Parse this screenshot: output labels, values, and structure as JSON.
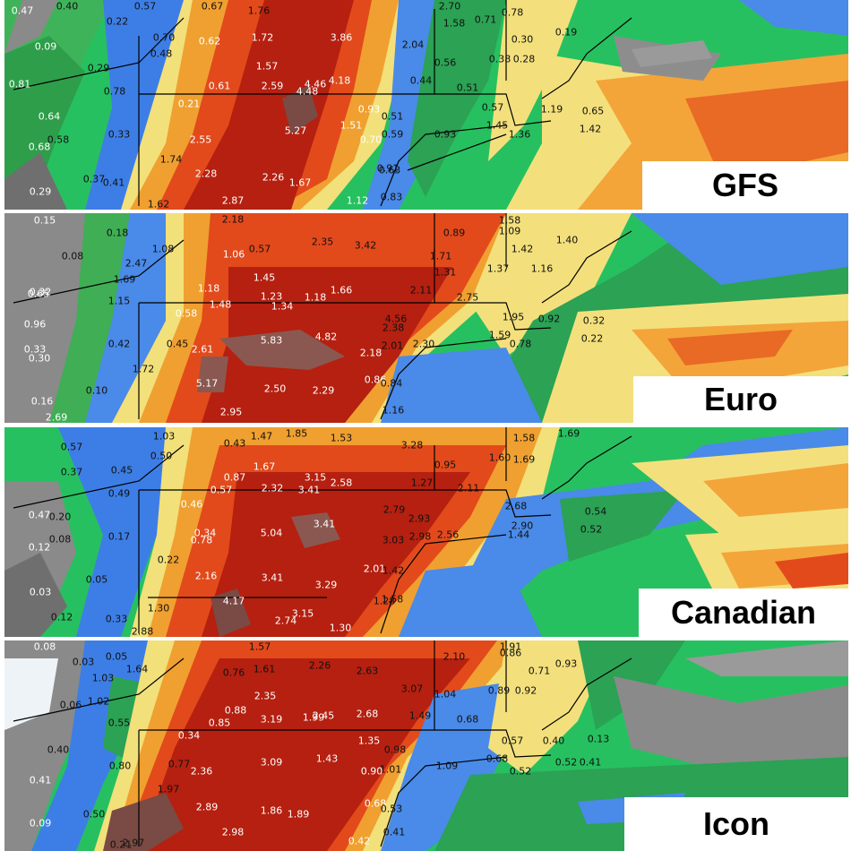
{
  "panels": [
    {
      "model": "GFS",
      "colors": {
        "base": "#22c35a"
      },
      "values": [
        "0.40",
        "0.57",
        "0.67",
        "1.76",
        "2.70",
        "0.71",
        "0.78",
        "0.47",
        "0.22",
        "0.70",
        "0.62",
        "1.72",
        "3.86",
        "2.04",
        "1.58",
        "0.30",
        "0.19",
        "0.09",
        "0.48",
        "0.38",
        "0.28",
        "0.29",
        "1.57",
        "4.46",
        "0.56",
        "0.81",
        "0.78",
        "0.61",
        "2.59",
        "4.18",
        "0.44",
        "0.51",
        "0.21",
        "4.48",
        "0.57",
        "1.19",
        "0.65",
        "0.64",
        "0.93",
        "0.51",
        "0.33",
        "5.27",
        "1.51",
        "1.36",
        "1.42",
        "0.68",
        "0.58",
        "2.55",
        "0.70",
        "0.59",
        "0.93",
        "1.45",
        "1.74",
        "0.91",
        "2.28",
        "2.26",
        "1.67",
        "0.63",
        "0.37",
        "0.41",
        "0.29",
        "2.87",
        "1.12",
        "0.83",
        "1.62"
      ]
    },
    {
      "model": "Euro",
      "values": [
        "0.15",
        "2.18",
        "1.58",
        "0.18",
        "0.89",
        "1.09",
        "1.42",
        "1.40",
        "1.08",
        "2.35",
        "3.42",
        "1.71",
        "0.08",
        "2.47",
        "1.06",
        "0.57",
        "1.69",
        "1.37",
        "1.16",
        "0.32",
        "1.18",
        "1.45",
        "1.31",
        "0.65",
        "1.23",
        "1.18",
        "1.66",
        "2.11",
        "2.75",
        "1.15",
        "1.48",
        "1.34",
        "0.96",
        "0.58",
        "4.56",
        "1.95",
        "0.92",
        "0.32",
        "0.33",
        "2.38",
        "0.42",
        "0.45",
        "2.61",
        "5.83",
        "4.82",
        "2.01",
        "2.30",
        "1.59",
        "0.78",
        "0.22",
        "0.30",
        "2.18",
        "1.72",
        "5.17",
        "2.50",
        "2.29",
        "0.86",
        "0.84",
        "0.10",
        "0.16",
        "2.69",
        "2.95",
        "1.16"
      ]
    },
    {
      "model": "Canadian",
      "values": [
        "1.03",
        "1.47",
        "1.85",
        "1.53",
        "3.28",
        "1.58",
        "1.69",
        "0.57",
        "0.50",
        "0.43",
        "0.37",
        "0.45",
        "1.67",
        "0.87",
        "3.15",
        "1.60",
        "1.69",
        "0.95",
        "0.49",
        "0.57",
        "2.32",
        "3.41",
        "2.58",
        "1.27",
        "2.11",
        "0.46",
        "2.68",
        "0.47",
        "2.79",
        "0.20",
        "2.93",
        "0.54",
        "2.90",
        "0.12",
        "0.17",
        "0.34",
        "5.04",
        "3.41",
        "0.08",
        "0.78",
        "2.98",
        "3.03",
        "2.56",
        "1.44",
        "0.52",
        "0.22",
        "1.42",
        "2.01",
        "2.16",
        "3.41",
        "3.29",
        "0.05",
        "0.03",
        "4.17",
        "1.28",
        "1.58",
        "0.12",
        "1.30",
        "0.33",
        "3.15",
        "2.74",
        "1.30",
        "2.88"
      ]
    },
    {
      "model": "Icon",
      "values": [
        "0.08",
        "1.57",
        "1.91",
        "0.03",
        "0.05",
        "2.26",
        "2.63",
        "2.10",
        "0.86",
        "0.93",
        "1.64",
        "0.76",
        "1.61",
        "0.71",
        "1.03",
        "3.07",
        "0.89",
        "0.92",
        "1.02",
        "2.35",
        "1.04",
        "0.06",
        "0.88",
        "1.99",
        "2.68",
        "1.49",
        "0.55",
        "0.85",
        "3.19",
        "2.45",
        "0.68",
        "0.34",
        "1.35",
        "0.57",
        "0.40",
        "0.13",
        "0.40",
        "0.98",
        "1.43",
        "0.80",
        "0.77",
        "3.09",
        "1.09",
        "0.68",
        "0.52",
        "0.52",
        "2.36",
        "1.01",
        "0.90",
        "0.41",
        "0.41",
        "1.97",
        "0.68",
        "2.89",
        "1.86",
        "1.89",
        "0.53",
        "0.09",
        "0.50",
        "2.98",
        "2.97",
        "0.42",
        "0.41",
        "0.21"
      ]
    }
  ]
}
